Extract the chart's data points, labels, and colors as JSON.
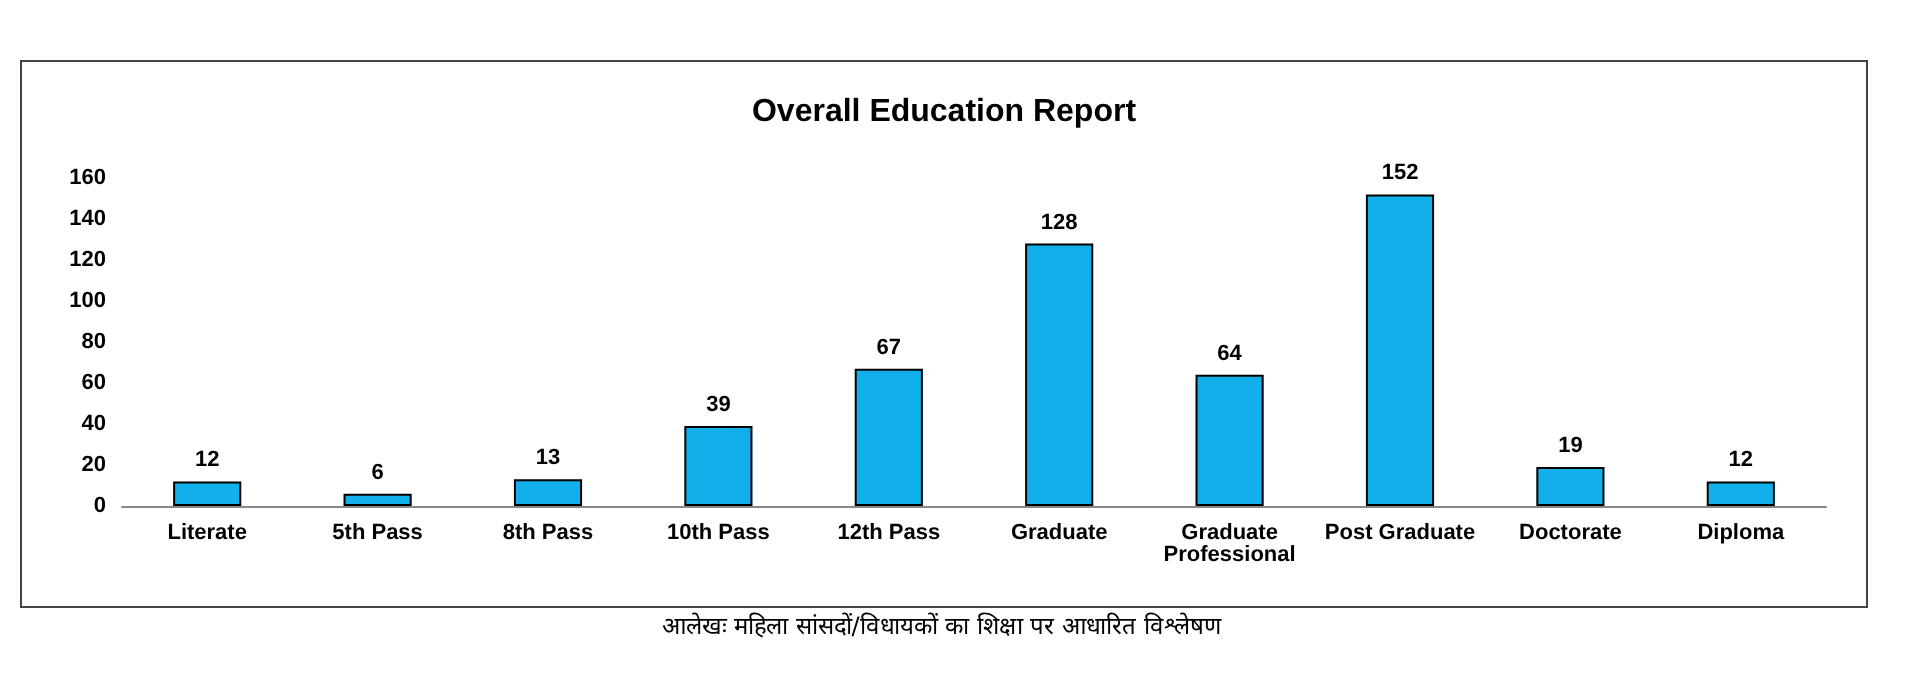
{
  "chart_data": {
    "type": "bar",
    "title": "Overall Education Report",
    "categories": [
      "Literate",
      "5th Pass",
      "8th Pass",
      "10th Pass",
      "12th Pass",
      "Graduate",
      "Graduate\nProfessional",
      "Post Graduate",
      "Doctorate",
      "Diploma"
    ],
    "values": [
      12,
      6,
      13,
      39,
      67,
      128,
      64,
      152,
      19,
      12
    ],
    "color": "#12b0ea",
    "ylim": [
      0,
      160
    ],
    "yticks": [
      0,
      20,
      40,
      60,
      80,
      100,
      120,
      140,
      160
    ],
    "grid": false,
    "data_labels": true,
    "annotations": [
      "आलेखः महिला सांसदों/विधायकों का शिक्षा पर आधारित विश्लेषण"
    ]
  }
}
